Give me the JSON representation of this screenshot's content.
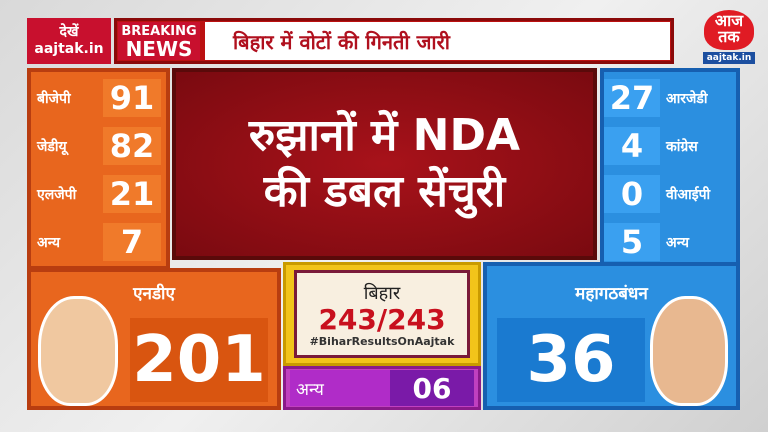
{
  "top": {
    "watch_label": "देखें",
    "watch_url": "aajtak.in",
    "breaking_1": "BREAKING",
    "breaking_2": "NEWS",
    "headline": "बिहार में वोटों की गिनती जारी"
  },
  "logo": {
    "text": "आज तक",
    "url": "aajtak.in"
  },
  "nda": {
    "parties": [
      {
        "name": "बीजेपी",
        "seats": "91"
      },
      {
        "name": "जेडीयू",
        "seats": "82"
      },
      {
        "name": "एलजेपी",
        "seats": "21"
      },
      {
        "name": "अन्य",
        "seats": "7"
      }
    ],
    "label": "एनडीए",
    "total": "201"
  },
  "mgb": {
    "parties": [
      {
        "name": "आरजेडी",
        "seats": "27"
      },
      {
        "name": "कांग्रेस",
        "seats": "4"
      },
      {
        "name": "वीआईपी",
        "seats": "0"
      },
      {
        "name": "अन्य",
        "seats": "5"
      }
    ],
    "label": "महागठबंधन",
    "total": "36"
  },
  "center": {
    "line1": "रुझानों में NDA",
    "line2": "की डबल सेंचुरी"
  },
  "summary": {
    "state": "बिहार",
    "seats": "243/243",
    "hashtag": "#BiharResultsOnAajtak"
  },
  "others": {
    "label": "अन्य",
    "seats": "06"
  },
  "colors": {
    "nda": "#e8661e",
    "mgb": "#2b8fe0",
    "accent": "#c8102e",
    "others": "#b02cc8"
  }
}
